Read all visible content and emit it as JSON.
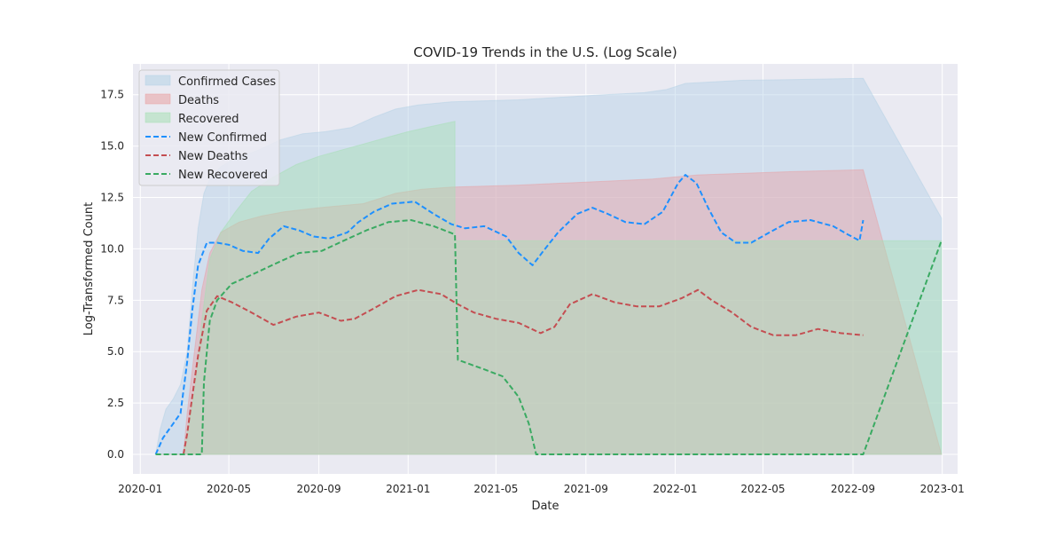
{
  "chart_data": {
    "type": "area",
    "title": "COVID-19 Trends in the U.S. (Log Scale)",
    "xlabel": "Date",
    "ylabel": "Log-Transformed Count",
    "x_range": [
      "2019-12-22",
      "2023-01-22"
    ],
    "ylim": [
      -0.95,
      19.0
    ],
    "x_ticks": [
      "2020-01",
      "2020-05",
      "2020-09",
      "2021-01",
      "2021-05",
      "2021-09",
      "2022-01",
      "2022-05",
      "2022-09",
      "2023-01"
    ],
    "y_ticks": [
      0.0,
      2.5,
      5.0,
      7.5,
      10.0,
      12.5,
      15.0,
      17.5
    ],
    "y_tick_labels": [
      "0.0",
      "2.5",
      "5.0",
      "7.5",
      "10.0",
      "12.5",
      "15.0",
      "17.5"
    ],
    "grid": true,
    "legend_position": "top-left",
    "background": "#eaeaf2",
    "series": [
      {
        "name": "Confirmed Cases",
        "kind": "area",
        "color": "#b3d1e6",
        "points": [
          [
            "2020-01-22",
            0.0
          ],
          [
            "2020-01-28",
            1.2
          ],
          [
            "2020-02-05",
            2.2
          ],
          [
            "2020-02-15",
            2.7
          ],
          [
            "2020-02-25",
            3.4
          ],
          [
            "2020-03-05",
            5.0
          ],
          [
            "2020-03-12",
            8.0
          ],
          [
            "2020-03-20",
            11.0
          ],
          [
            "2020-03-28",
            12.7
          ],
          [
            "2020-04-05",
            13.4
          ],
          [
            "2020-04-20",
            14.0
          ],
          [
            "2020-05-10",
            14.4
          ],
          [
            "2020-06-10",
            14.8
          ],
          [
            "2020-07-10",
            15.3
          ],
          [
            "2020-08-10",
            15.6
          ],
          [
            "2020-09-10",
            15.7
          ],
          [
            "2020-10-15",
            15.9
          ],
          [
            "2020-11-15",
            16.4
          ],
          [
            "2020-12-15",
            16.8
          ],
          [
            "2021-01-15",
            17.0
          ],
          [
            "2021-03-01",
            17.15
          ],
          [
            "2021-06-01",
            17.25
          ],
          [
            "2021-09-01",
            17.45
          ],
          [
            "2021-11-20",
            17.6
          ],
          [
            "2021-12-20",
            17.75
          ],
          [
            "2022-01-15",
            18.05
          ],
          [
            "2022-04-01",
            18.2
          ],
          [
            "2022-07-01",
            18.25
          ],
          [
            "2022-09-15",
            18.3
          ],
          [
            "2022-12-31",
            11.5
          ]
        ]
      },
      {
        "name": "Deaths",
        "kind": "area",
        "color": "#e8a0a3",
        "points": [
          [
            "2020-01-22",
            0.0
          ],
          [
            "2020-02-29",
            0.0
          ],
          [
            "2020-03-05",
            2.0
          ],
          [
            "2020-03-15",
            5.0
          ],
          [
            "2020-03-25",
            8.0
          ],
          [
            "2020-04-05",
            9.8
          ],
          [
            "2020-04-20",
            10.8
          ],
          [
            "2020-05-15",
            11.3
          ],
          [
            "2020-06-15",
            11.6
          ],
          [
            "2020-07-15",
            11.8
          ],
          [
            "2020-09-01",
            12.0
          ],
          [
            "2020-11-01",
            12.2
          ],
          [
            "2020-12-15",
            12.7
          ],
          [
            "2021-01-20",
            12.9
          ],
          [
            "2021-03-01",
            13.0
          ],
          [
            "2021-06-01",
            13.1
          ],
          [
            "2021-09-01",
            13.25
          ],
          [
            "2021-12-01",
            13.4
          ],
          [
            "2022-02-01",
            13.6
          ],
          [
            "2022-06-01",
            13.75
          ],
          [
            "2022-09-15",
            13.85
          ],
          [
            "2022-12-31",
            0.0
          ]
        ]
      },
      {
        "name": "Recovered",
        "kind": "area",
        "color": "#a6dfb4",
        "points": [
          [
            "2020-01-22",
            0.0
          ],
          [
            "2020-02-29",
            0.0
          ],
          [
            "2020-03-15",
            3.0
          ],
          [
            "2020-03-25",
            6.5
          ],
          [
            "2020-04-05",
            9.5
          ],
          [
            "2020-04-20",
            10.8
          ],
          [
            "2020-05-10",
            11.8
          ],
          [
            "2020-06-01",
            12.8
          ],
          [
            "2020-07-01",
            13.5
          ],
          [
            "2020-08-01",
            14.1
          ],
          [
            "2020-09-01",
            14.5
          ],
          [
            "2020-10-01",
            14.8
          ],
          [
            "2020-11-01",
            15.1
          ],
          [
            "2020-12-01",
            15.4
          ],
          [
            "2021-01-01",
            15.7
          ],
          [
            "2021-02-01",
            15.95
          ],
          [
            "2021-03-06",
            16.2
          ],
          [
            "2021-03-06",
            10.4
          ],
          [
            "2022-12-31",
            10.4
          ],
          [
            "2022-12-31",
            0.0
          ]
        ]
      },
      {
        "name": "New Confirmed",
        "kind": "dashed-line",
        "color": "#1e90ff",
        "points": [
          [
            "2020-01-22",
            0.0
          ],
          [
            "2020-02-01",
            0.8
          ],
          [
            "2020-02-15",
            1.5
          ],
          [
            "2020-02-25",
            2.0
          ],
          [
            "2020-03-05",
            4.5
          ],
          [
            "2020-03-12",
            7.0
          ],
          [
            "2020-03-20",
            9.2
          ],
          [
            "2020-04-01",
            10.3
          ],
          [
            "2020-04-15",
            10.3
          ],
          [
            "2020-05-01",
            10.2
          ],
          [
            "2020-05-20",
            9.9
          ],
          [
            "2020-06-10",
            9.8
          ],
          [
            "2020-06-25",
            10.5
          ],
          [
            "2020-07-15",
            11.1
          ],
          [
            "2020-08-05",
            10.9
          ],
          [
            "2020-08-25",
            10.6
          ],
          [
            "2020-09-15",
            10.5
          ],
          [
            "2020-10-10",
            10.8
          ],
          [
            "2020-10-25",
            11.3
          ],
          [
            "2020-11-15",
            11.8
          ],
          [
            "2020-12-10",
            12.2
          ],
          [
            "2021-01-10",
            12.3
          ],
          [
            "2021-02-05",
            11.7
          ],
          [
            "2021-03-01",
            11.2
          ],
          [
            "2021-03-20",
            11.0
          ],
          [
            "2021-04-15",
            11.1
          ],
          [
            "2021-05-15",
            10.6
          ],
          [
            "2021-06-01",
            9.8
          ],
          [
            "2021-06-20",
            9.2
          ],
          [
            "2021-07-05",
            9.9
          ],
          [
            "2021-07-25",
            10.8
          ],
          [
            "2021-08-20",
            11.7
          ],
          [
            "2021-09-10",
            12.0
          ],
          [
            "2021-10-01",
            11.7
          ],
          [
            "2021-10-25",
            11.3
          ],
          [
            "2021-11-20",
            11.2
          ],
          [
            "2021-12-15",
            11.8
          ],
          [
            "2022-01-05",
            13.2
          ],
          [
            "2022-01-15",
            13.6
          ],
          [
            "2022-01-30",
            13.2
          ],
          [
            "2022-02-15",
            12.0
          ],
          [
            "2022-03-05",
            10.8
          ],
          [
            "2022-03-25",
            10.3
          ],
          [
            "2022-04-15",
            10.3
          ],
          [
            "2022-05-10",
            10.8
          ],
          [
            "2022-06-05",
            11.3
          ],
          [
            "2022-07-05",
            11.4
          ],
          [
            "2022-08-05",
            11.1
          ],
          [
            "2022-08-25",
            10.7
          ],
          [
            "2022-09-10",
            10.4
          ],
          [
            "2022-09-15",
            11.4
          ]
        ]
      },
      {
        "name": "New Deaths",
        "kind": "dashed-line",
        "color": "#c44e52",
        "points": [
          [
            "2020-02-29",
            0.0
          ],
          [
            "2020-03-05",
            1.0
          ],
          [
            "2020-03-12",
            2.8
          ],
          [
            "2020-03-20",
            4.8
          ],
          [
            "2020-04-01",
            7.0
          ],
          [
            "2020-04-15",
            7.7
          ],
          [
            "2020-05-05",
            7.4
          ],
          [
            "2020-06-01",
            6.9
          ],
          [
            "2020-07-01",
            6.3
          ],
          [
            "2020-08-01",
            6.7
          ],
          [
            "2020-09-01",
            6.9
          ],
          [
            "2020-10-01",
            6.5
          ],
          [
            "2020-10-20",
            6.6
          ],
          [
            "2020-11-15",
            7.1
          ],
          [
            "2020-12-15",
            7.7
          ],
          [
            "2021-01-15",
            8.0
          ],
          [
            "2021-02-15",
            7.8
          ],
          [
            "2021-03-10",
            7.3
          ],
          [
            "2021-04-01",
            6.9
          ],
          [
            "2021-05-01",
            6.6
          ],
          [
            "2021-06-01",
            6.4
          ],
          [
            "2021-07-01",
            5.9
          ],
          [
            "2021-07-20",
            6.2
          ],
          [
            "2021-08-10",
            7.3
          ],
          [
            "2021-09-10",
            7.8
          ],
          [
            "2021-10-10",
            7.4
          ],
          [
            "2021-11-10",
            7.2
          ],
          [
            "2021-12-10",
            7.2
          ],
          [
            "2022-01-10",
            7.6
          ],
          [
            "2022-02-01",
            8.0
          ],
          [
            "2022-02-20",
            7.5
          ],
          [
            "2022-03-20",
            6.9
          ],
          [
            "2022-04-15",
            6.2
          ],
          [
            "2022-05-15",
            5.8
          ],
          [
            "2022-06-15",
            5.8
          ],
          [
            "2022-07-15",
            6.1
          ],
          [
            "2022-08-15",
            5.9
          ],
          [
            "2022-09-15",
            5.8
          ]
        ]
      },
      {
        "name": "New Recovered",
        "kind": "dashed-line",
        "color": "#3aaa62",
        "points": [
          [
            "2020-01-22",
            0.0
          ],
          [
            "2020-03-25",
            0.0
          ],
          [
            "2020-03-28",
            3.5
          ],
          [
            "2020-04-05",
            6.5
          ],
          [
            "2020-04-15",
            7.5
          ],
          [
            "2020-05-05",
            8.3
          ],
          [
            "2020-06-05",
            8.8
          ],
          [
            "2020-07-05",
            9.3
          ],
          [
            "2020-08-05",
            9.8
          ],
          [
            "2020-09-05",
            9.9
          ],
          [
            "2020-10-05",
            10.4
          ],
          [
            "2020-11-05",
            10.9
          ],
          [
            "2020-12-05",
            11.3
          ],
          [
            "2021-01-05",
            11.4
          ],
          [
            "2021-02-05",
            11.1
          ],
          [
            "2021-03-06",
            10.7
          ],
          [
            "2021-03-10",
            4.6
          ],
          [
            "2021-04-10",
            4.2
          ],
          [
            "2021-05-10",
            3.8
          ],
          [
            "2021-06-01",
            2.8
          ],
          [
            "2021-06-15",
            1.5
          ],
          [
            "2021-06-25",
            0.0
          ],
          [
            "2022-09-15",
            0.0
          ],
          [
            "2022-12-31",
            10.4
          ]
        ]
      }
    ]
  }
}
